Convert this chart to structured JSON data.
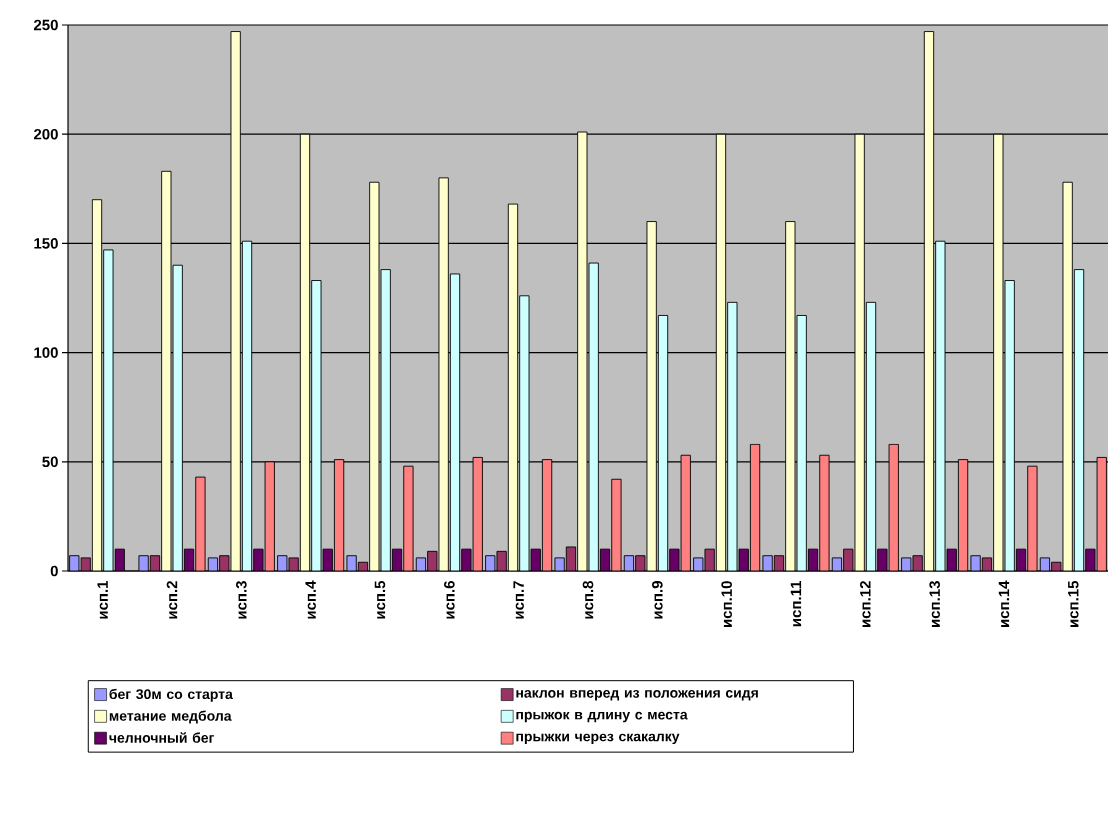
{
  "chart_data": {
    "type": "bar",
    "categories": [
      "исп.1",
      "исп.2",
      "исп.3",
      "исп.4",
      "исп.5",
      "исп.6",
      "исп.7",
      "исп.8",
      "исп.9",
      "исп.10",
      "исп.11",
      "исп.12",
      "исп.13",
      "исп.14",
      "исп.15"
    ],
    "series": [
      {
        "name": "бег 30м со старта",
        "color": "#9999ff",
        "values": [
          7,
          7,
          6,
          7,
          7,
          6,
          7,
          6,
          7,
          6,
          7,
          6,
          6,
          7,
          6
        ]
      },
      {
        "name": "наклон вперед из положения сидя",
        "color": "#993366",
        "values": [
          6,
          7,
          7,
          6,
          4,
          9,
          9,
          11,
          7,
          10,
          7,
          10,
          7,
          6,
          4
        ]
      },
      {
        "name": "метание медбола",
        "color": "#ffffcc",
        "values": [
          170,
          183,
          247,
          200,
          178,
          180,
          168,
          201,
          160,
          200,
          160,
          200,
          247,
          200,
          178
        ]
      },
      {
        "name": "прыжок в длину с места",
        "color": "#ccffff",
        "values": [
          147,
          140,
          151,
          133,
          138,
          136,
          126,
          141,
          117,
          123,
          117,
          123,
          151,
          133,
          138
        ]
      },
      {
        "name": "челночный бег",
        "color": "#660066",
        "values": [
          10,
          10,
          10,
          10,
          10,
          10,
          10,
          10,
          10,
          10,
          10,
          10,
          10,
          10,
          10
        ]
      },
      {
        "name": "прыжки через скакалку",
        "color": "#ff8080",
        "values": [
          null,
          43,
          50,
          51,
          48,
          52,
          51,
          42,
          53,
          58,
          53,
          58,
          51,
          48,
          52
        ]
      }
    ],
    "ylim": [
      0,
      250
    ],
    "yticks": [
      0,
      50,
      100,
      150,
      200,
      250
    ],
    "grid": "y",
    "legend": "bottom"
  }
}
